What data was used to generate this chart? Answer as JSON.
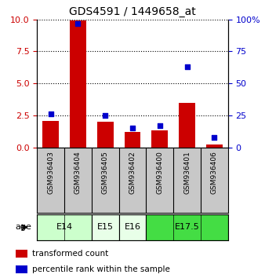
{
  "title": "GDS4591 / 1449658_at",
  "samples": [
    "GSM936403",
    "GSM936404",
    "GSM936405",
    "GSM936402",
    "GSM936400",
    "GSM936401",
    "GSM936406"
  ],
  "transformed_counts": [
    2.05,
    9.95,
    2.0,
    1.2,
    1.3,
    3.5,
    0.2
  ],
  "percentile_ranks": [
    26,
    97,
    25,
    15,
    17,
    63,
    8
  ],
  "left_ylim": [
    0,
    10
  ],
  "right_ylim": [
    0,
    100
  ],
  "left_yticks": [
    0,
    2.5,
    5,
    7.5,
    10
  ],
  "right_yticks": [
    0,
    25,
    50,
    75,
    100
  ],
  "right_yticklabels": [
    "0",
    "25",
    "50",
    "75",
    "100%"
  ],
  "bar_color": "#cc0000",
  "marker_color": "#0000cc",
  "age_groups": [
    {
      "label": "E14",
      "samples": [
        0,
        1
      ],
      "color": "#ccffcc"
    },
    {
      "label": "E15",
      "samples": [
        2
      ],
      "color": "#e8ffe8"
    },
    {
      "label": "E16",
      "samples": [
        3
      ],
      "color": "#e8ffe8"
    },
    {
      "label": "E17.5",
      "samples": [
        4,
        5,
        6
      ],
      "color": "#44dd44"
    }
  ],
  "background_color": "#ffffff",
  "sample_bg_color": "#c8c8c8",
  "left_label_color": "#cc0000",
  "right_label_color": "#0000cc",
  "legend_items": [
    {
      "color": "#cc0000",
      "label": "transformed count"
    },
    {
      "color": "#0000cc",
      "label": "percentile rank within the sample"
    }
  ]
}
